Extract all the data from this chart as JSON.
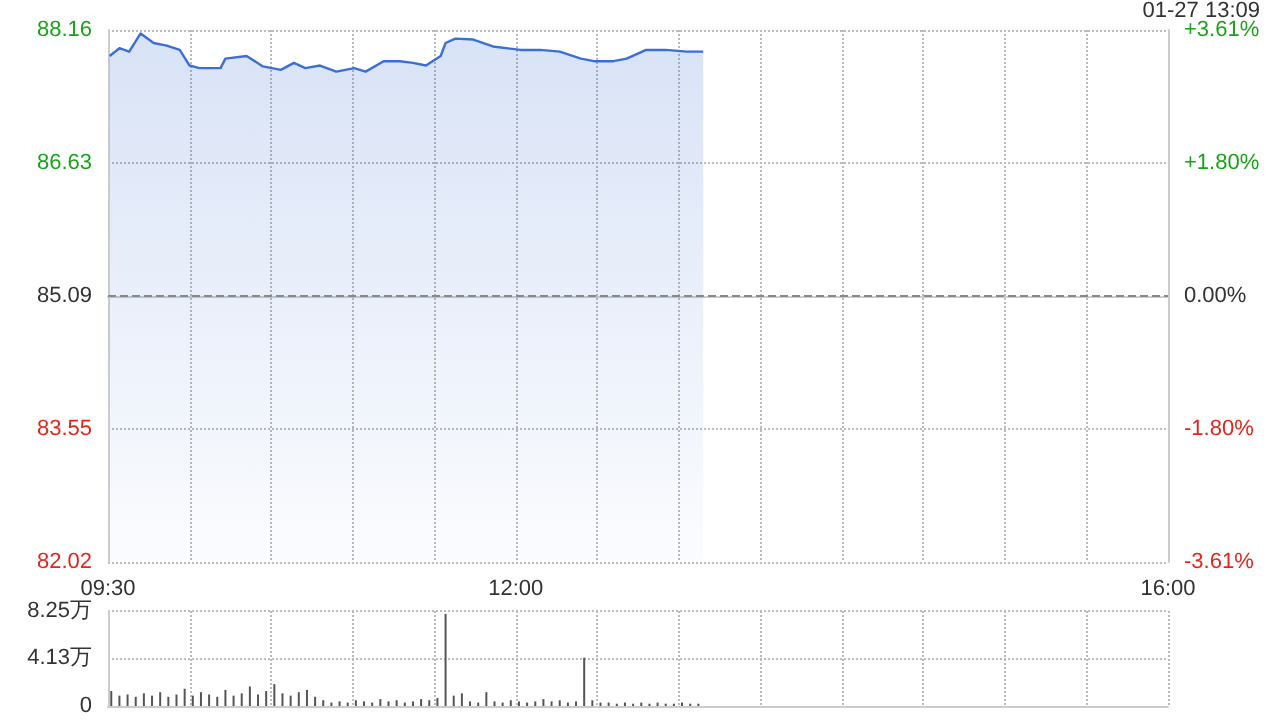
{
  "chart_data": [
    {
      "type": "area",
      "annotations": [
        "01-27 13:09"
      ],
      "x": [
        9.51,
        9.57,
        9.63,
        9.7,
        9.78,
        9.86,
        9.94,
        10.0,
        10.06,
        10.19,
        10.22,
        10.35,
        10.45,
        10.56,
        10.64,
        10.71,
        10.8,
        10.9,
        11.01,
        11.08,
        11.19,
        11.29,
        11.37,
        11.45,
        11.54,
        11.57,
        11.63,
        11.74,
        11.86,
        12.03,
        12.15,
        12.27,
        12.4,
        12.48,
        12.6,
        12.68,
        12.8,
        12.92,
        13.05,
        13.15
      ],
      "series": [
        {
          "color": "#3b6fd4",
          "values": [
            87.86,
            87.95,
            87.91,
            88.12,
            88.01,
            87.98,
            87.93,
            87.75,
            87.72,
            87.72,
            87.83,
            87.86,
            87.74,
            87.7,
            87.78,
            87.72,
            87.75,
            87.68,
            87.72,
            87.68,
            87.8,
            87.8,
            87.78,
            87.75,
            87.86,
            88.01,
            88.06,
            88.05,
            87.97,
            87.93,
            87.93,
            87.91,
            87.83,
            87.8,
            87.8,
            87.83,
            87.93,
            87.93,
            87.91,
            87.91
          ]
        }
      ],
      "xlim": [
        9.5,
        16
      ],
      "xticks": [
        {
          "value": 9.5,
          "label": "09:30"
        },
        {
          "value": 10,
          "label": null
        },
        {
          "value": 10.5,
          "label": null
        },
        {
          "value": 11,
          "label": null
        },
        {
          "value": 11.5,
          "label": null
        },
        {
          "value": 12,
          "label": "12:00"
        },
        {
          "value": 12.5,
          "label": null
        },
        {
          "value": 13,
          "label": null
        },
        {
          "value": 13.5,
          "label": null
        },
        {
          "value": 14,
          "label": null
        },
        {
          "value": 14.5,
          "label": null
        },
        {
          "value": 15,
          "label": null
        },
        {
          "value": 15.5,
          "label": null
        },
        {
          "value": 16,
          "label": "16:00"
        }
      ],
      "ylim": [
        82.02,
        88.16
      ],
      "yticks": [
        82.02,
        83.55,
        85.09,
        86.63,
        88.16
      ],
      "y2lim": [
        -3.61,
        3.61
      ],
      "y2ticks": [
        {
          "value": -3.61,
          "label": "-3.61%"
        },
        {
          "value": -1.8,
          "label": "-1.80%"
        },
        {
          "value": 0,
          "label": "0.00%"
        },
        {
          "value": 1.8,
          "label": "+1.80%"
        },
        {
          "value": 3.61,
          "label": "+3.61%"
        }
      ],
      "ref_lines": [
        {
          "axis": "y",
          "value": 85.09,
          "line_style": "dashed"
        }
      ],
      "grid": true,
      "marker": "none",
      "line_style": "solid"
    },
    {
      "type": "bar",
      "tick_labels": "y",
      "x": [
        9.52,
        9.57,
        9.62,
        9.67,
        9.72,
        9.77,
        9.82,
        9.87,
        9.92,
        9.97,
        10.02,
        10.07,
        10.12,
        10.17,
        10.22,
        10.27,
        10.32,
        10.37,
        10.42,
        10.47,
        10.52,
        10.57,
        10.62,
        10.67,
        10.72,
        10.77,
        10.82,
        10.87,
        10.92,
        10.97,
        11.02,
        11.07,
        11.12,
        11.17,
        11.22,
        11.27,
        11.32,
        11.37,
        11.42,
        11.47,
        11.52,
        11.57,
        11.62,
        11.67,
        11.72,
        11.77,
        11.82,
        11.87,
        11.92,
        11.97,
        12.02,
        12.07,
        12.12,
        12.17,
        12.22,
        12.27,
        12.32,
        12.37,
        12.42,
        12.47,
        12.52,
        12.57,
        12.62,
        12.67,
        12.72,
        12.77,
        12.82,
        12.87,
        12.92,
        12.97,
        13.02,
        13.07,
        13.12
      ],
      "series": [
        {
          "color": "#555555",
          "values": [
            1.3,
            0.9,
            1.0,
            0.8,
            1.1,
            0.9,
            1.2,
            0.8,
            1.0,
            1.5,
            0.9,
            1.2,
            1.0,
            0.8,
            1.4,
            0.9,
            1.1,
            1.7,
            1.0,
            1.3,
            1.9,
            1.1,
            0.9,
            1.2,
            1.4,
            0.8,
            0.5,
            0.3,
            0.4,
            0.3,
            0.5,
            0.4,
            0.3,
            0.6,
            0.4,
            0.5,
            0.3,
            0.4,
            0.6,
            0.5,
            0.7,
            8.0,
            0.9,
            1.1,
            0.4,
            0.3,
            1.2,
            0.4,
            0.3,
            0.5,
            0.4,
            0.3,
            0.4,
            0.6,
            0.4,
            0.5,
            0.3,
            0.4,
            4.2,
            0.5,
            0.3,
            0.3,
            0.2,
            0.3,
            0.2,
            0.3,
            0.2,
            0.3,
            0.2,
            0.2,
            0.3,
            0.2,
            0.2
          ]
        }
      ],
      "xlim": [
        9.5,
        16
      ],
      "ylim": [
        0,
        8.25
      ],
      "yticks": [
        0,
        {
          "value": 4.13,
          "label": "4.13万"
        },
        {
          "value": 8.25,
          "label": "8.25万"
        }
      ],
      "grid": true
    }
  ]
}
